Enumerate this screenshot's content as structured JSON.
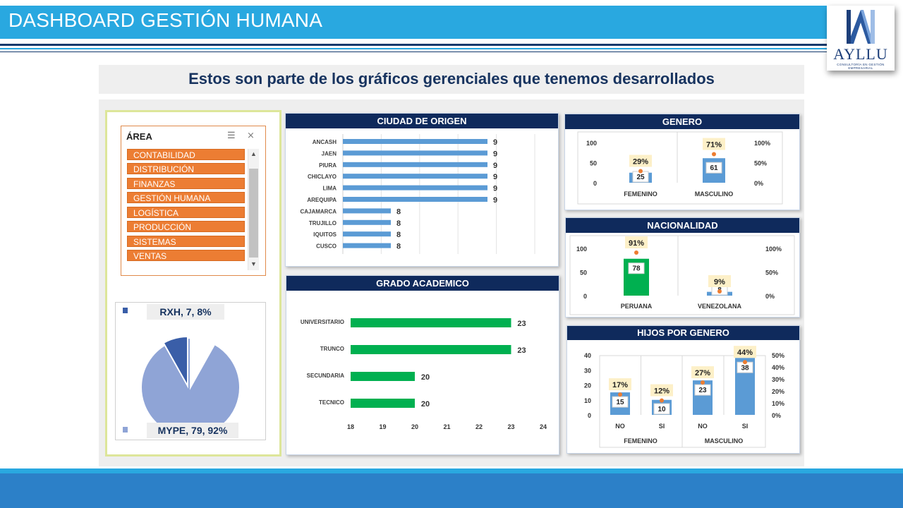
{
  "header": {
    "title": "DASHBOARD GESTIÓN HUMANA",
    "logo_text": "AYLLU",
    "logo_tagline": "CONSULTORÍA EN GESTIÓN EMPRESARIAL"
  },
  "subtitle": "Estos son parte de los gráficos gerenciales que tenemos desarrollados",
  "slicer": {
    "title": "ÁREA",
    "items": [
      "CONTABILIDAD",
      "DISTRIBUCIÓN",
      "FINANZAS",
      "GESTIÓN HUMANA",
      "LOGÍSTICA",
      "PRODUCCIÓN",
      "SISTEMAS",
      "VENTAS"
    ]
  },
  "colors": {
    "header_blue": "#29a8e0",
    "navy": "#0f2a5c",
    "bar_blue": "#5b9bd5",
    "bar_green": "#00b050",
    "slicer_orange": "#ec7d33",
    "pie_light": "#8fa4d6",
    "pie_dark": "#3a5ea8"
  },
  "chart_data": [
    {
      "id": "empresa",
      "type": "pie",
      "slices": [
        {
          "label": "RXH, 7, 8%",
          "name": "RXH",
          "value": 7,
          "percent": 8
        },
        {
          "label": "MYPE, 79, 92%",
          "name": "MYPE",
          "value": 79,
          "percent": 92
        }
      ]
    },
    {
      "id": "ciudad",
      "type": "bar",
      "orientation": "horizontal",
      "title": "CIUDAD DE ORIGEN",
      "categories": [
        "ANCASH",
        "JAEN",
        "PIURA",
        "CHICLAYO",
        "LIMA",
        "AREQUIPA",
        "CAJAMARCA",
        "TRUJILLO",
        "IQUITOS",
        "CUSCO"
      ],
      "values": [
        9,
        9,
        9,
        9,
        9,
        9,
        8,
        8,
        8,
        8
      ],
      "value_labels": [
        "9",
        "9",
        "9",
        "9",
        "9",
        "9",
        "8",
        "8",
        "8",
        "8"
      ]
    },
    {
      "id": "grado",
      "type": "bar",
      "orientation": "horizontal",
      "title": "GRADO ACADEMICO",
      "categories": [
        "UNIVERSITARIO",
        "TRUNCO",
        "SECUNDARIA",
        "TECNICO"
      ],
      "values": [
        23,
        23,
        20,
        20
      ],
      "value_labels": [
        "23",
        "23",
        "20",
        "20"
      ],
      "xlim": [
        18,
        24
      ],
      "x_ticks": [
        "18",
        "19",
        "20",
        "21",
        "22",
        "23",
        "24"
      ]
    },
    {
      "id": "genero",
      "type": "bar",
      "title": "GENERO",
      "categories": [
        "FEMENINO",
        "MASCULINO"
      ],
      "values": [
        25,
        61
      ],
      "value_labels": [
        "25",
        "61"
      ],
      "percent": [
        29,
        71
      ],
      "percent_labels": [
        "29%",
        "71%"
      ],
      "ylim": [
        0,
        100
      ],
      "y_ticks": [
        "0",
        "50",
        "100"
      ],
      "y2_ticks": [
        "0%",
        "50%",
        "100%"
      ]
    },
    {
      "id": "nacionalidad",
      "type": "bar",
      "title": "NACIONALIDAD",
      "categories": [
        "PERUANA",
        "VENEZOLANA"
      ],
      "values": [
        78,
        8
      ],
      "value_labels": [
        "78",
        "8"
      ],
      "percent": [
        91,
        9
      ],
      "percent_labels": [
        "91%",
        "9%"
      ],
      "ylim": [
        0,
        100
      ],
      "y_ticks": [
        "0",
        "50",
        "100"
      ],
      "y2_ticks": [
        "0%",
        "50%",
        "100%"
      ]
    },
    {
      "id": "hijos",
      "type": "bar",
      "title": "HIJOS  POR GENERO",
      "categories": [
        "NO",
        "SI",
        "NO",
        "SI"
      ],
      "groups": [
        "FEMENINO",
        "MASCULINO"
      ],
      "values": [
        15,
        10,
        23,
        38
      ],
      "value_labels": [
        "15",
        "10",
        "23",
        "38"
      ],
      "percent": [
        17,
        12,
        27,
        44
      ],
      "percent_labels": [
        "17%",
        "12%",
        "27%",
        "44%"
      ],
      "ylim": [
        0,
        40
      ],
      "y2lim": [
        0,
        50
      ],
      "y_ticks": [
        "0",
        "10",
        "20",
        "30",
        "40"
      ],
      "y2_ticks": [
        "0%",
        "10%",
        "20%",
        "30%",
        "40%",
        "50%"
      ]
    }
  ]
}
